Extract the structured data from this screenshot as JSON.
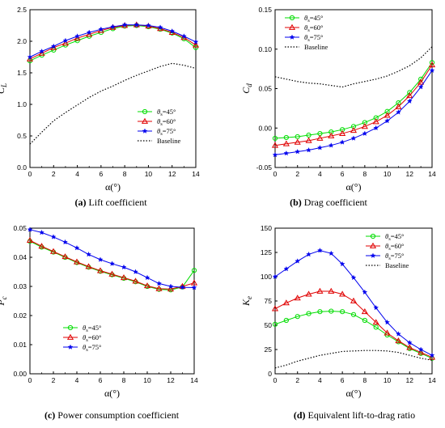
{
  "chart_data": [
    {
      "type": "line",
      "caption_tag": "(a)",
      "caption_text": " Lift coefficient",
      "ylabel_main": "C",
      "ylabel_sub": "L",
      "xlabel": "α(°)",
      "xlim": [
        0,
        14
      ],
      "ylim": [
        0.0,
        2.5
      ],
      "xticks": [
        "0",
        "2",
        "4",
        "6",
        "8",
        "10",
        "12",
        "14"
      ],
      "yticks": [
        "0.0",
        "0.5",
        "1.0",
        "1.5",
        "2.0",
        "2.5"
      ],
      "legend_position": "bottom-right",
      "x": [
        0,
        1,
        2,
        3,
        4,
        5,
        6,
        7,
        8,
        9,
        10,
        11,
        12,
        13,
        14
      ],
      "series": [
        {
          "name": "θs=45°",
          "name_pre": "θ",
          "name_sub": "s",
          "name_post": "=45°",
          "color": "#00dd00",
          "marker": "circle",
          "values": [
            1.69,
            1.78,
            1.86,
            1.94,
            2.01,
            2.08,
            2.14,
            2.2,
            2.24,
            2.25,
            2.23,
            2.19,
            2.13,
            2.04,
            1.9
          ]
        },
        {
          "name": "θs=60°",
          "name_pre": "θ",
          "name_sub": "s",
          "name_post": "=60°",
          "color": "#e00000",
          "marker": "triangle",
          "values": [
            1.72,
            1.81,
            1.9,
            1.97,
            2.05,
            2.11,
            2.17,
            2.22,
            2.25,
            2.26,
            2.24,
            2.2,
            2.14,
            2.06,
            1.94
          ]
        },
        {
          "name": "θs=75°",
          "name_pre": "θ",
          "name_sub": "s",
          "name_post": "=75°",
          "color": "#0000ee",
          "marker": "star",
          "values": [
            1.75,
            1.84,
            1.92,
            2.01,
            2.08,
            2.14,
            2.19,
            2.23,
            2.26,
            2.26,
            2.25,
            2.22,
            2.16,
            2.08,
            1.99
          ]
        },
        {
          "name": "Baseline",
          "color": "#000000",
          "dash": true,
          "values": [
            0.37,
            0.56,
            0.74,
            0.87,
            0.99,
            1.11,
            1.21,
            1.29,
            1.38,
            1.46,
            1.53,
            1.6,
            1.65,
            1.62,
            1.57
          ]
        }
      ]
    },
    {
      "type": "line",
      "caption_tag": "(b)",
      "caption_text": " Drag coefficient",
      "ylabel_main": "C",
      "ylabel_sub": "d",
      "xlabel": "α(°)",
      "xlim": [
        0,
        14
      ],
      "ylim": [
        -0.05,
        0.15
      ],
      "xticks": [
        "0",
        "2",
        "4",
        "6",
        "8",
        "10",
        "12",
        "14"
      ],
      "yticks": [
        "-0.05",
        "0.00",
        "0.05",
        "0.10",
        "0.15"
      ],
      "legend_position": "top-left",
      "x": [
        0,
        1,
        2,
        3,
        4,
        5,
        6,
        7,
        8,
        9,
        10,
        11,
        12,
        13,
        14
      ],
      "series": [
        {
          "name": "θs=45°",
          "name_pre": "θ",
          "name_sub": "s",
          "name_post": "=45°",
          "color": "#00dd00",
          "marker": "circle",
          "values": [
            -0.013,
            -0.012,
            -0.011,
            -0.009,
            -0.007,
            -0.005,
            -0.002,
            0.002,
            0.007,
            0.013,
            0.021,
            0.032,
            0.045,
            0.062,
            0.083
          ]
        },
        {
          "name": "θs=60°",
          "name_pre": "θ",
          "name_sub": "s",
          "name_post": "=60°",
          "color": "#e00000",
          "marker": "triangle",
          "values": [
            -0.022,
            -0.02,
            -0.018,
            -0.016,
            -0.013,
            -0.01,
            -0.007,
            -0.003,
            0.002,
            0.008,
            0.016,
            0.027,
            0.041,
            0.058,
            0.08
          ]
        },
        {
          "name": "θs=75°",
          "name_pre": "θ",
          "name_sub": "s",
          "name_post": "=75°",
          "color": "#0000ee",
          "marker": "star",
          "values": [
            -0.034,
            -0.032,
            -0.03,
            -0.028,
            -0.025,
            -0.022,
            -0.018,
            -0.013,
            -0.007,
            0.0,
            0.009,
            0.02,
            0.034,
            0.052,
            0.073
          ]
        },
        {
          "name": "Baseline",
          "color": "#000000",
          "dash": true,
          "values": [
            0.065,
            0.062,
            0.059,
            0.057,
            0.056,
            0.054,
            0.052,
            0.056,
            0.059,
            0.062,
            0.066,
            0.072,
            0.079,
            0.089,
            0.103
          ]
        }
      ]
    },
    {
      "type": "line",
      "caption_tag": "(c)",
      "caption_text": " Power consumption coefficient",
      "ylabel_main": "P",
      "ylabel_sub": "c",
      "xlabel": "α(°)",
      "xlim": [
        0,
        14
      ],
      "ylim": [
        0.0,
        0.05
      ],
      "xticks": [
        "0",
        "2",
        "4",
        "6",
        "8",
        "10",
        "12",
        "14"
      ],
      "yticks": [
        "0.00",
        "0.01",
        "0.02",
        "0.03",
        "0.04",
        "0.05"
      ],
      "legend_position": "bottom-left",
      "x": [
        0,
        1,
        2,
        3,
        4,
        5,
        6,
        7,
        8,
        9,
        10,
        11,
        12,
        13,
        14
      ],
      "series": [
        {
          "name": "θs=45°",
          "name_pre": "θ",
          "name_sub": "s",
          "name_post": "=45°",
          "color": "#00dd00",
          "marker": "circle",
          "values": [
            0.0455,
            0.0435,
            0.0418,
            0.04,
            0.0382,
            0.0366,
            0.0352,
            0.034,
            0.0328,
            0.0316,
            0.03,
            0.029,
            0.0288,
            0.0298,
            0.0355
          ]
        },
        {
          "name": "θs=60°",
          "name_pre": "θ",
          "name_sub": "s",
          "name_post": "=60°",
          "color": "#e00000",
          "marker": "triangle",
          "values": [
            0.0458,
            0.0438,
            0.042,
            0.0402,
            0.0384,
            0.0368,
            0.0354,
            0.0342,
            0.033,
            0.0318,
            0.0302,
            0.0292,
            0.0291,
            0.03,
            0.0312
          ]
        },
        {
          "name": "θs=75°",
          "name_pre": "θ",
          "name_sub": "s",
          "name_post": "=75°",
          "color": "#0000ee",
          "marker": "star",
          "values": [
            0.0495,
            0.0485,
            0.047,
            0.0452,
            0.0432,
            0.041,
            0.0392,
            0.0378,
            0.0366,
            0.035,
            0.033,
            0.031,
            0.03,
            0.0297,
            0.0296
          ]
        }
      ]
    },
    {
      "type": "line",
      "caption_tag": "(d)",
      "caption_text": " Equivalent lift-to-drag ratio",
      "ylabel_main": "K",
      "ylabel_sub": "e",
      "xlabel": "α(°)",
      "xlim": [
        0,
        14
      ],
      "ylim": [
        0,
        150
      ],
      "xticks": [
        "0",
        "2",
        "4",
        "6",
        "8",
        "10",
        "12",
        "14"
      ],
      "yticks": [
        "0",
        "25",
        "50",
        "75",
        "100",
        "125",
        "150"
      ],
      "legend_position": "top-right",
      "x": [
        0,
        1,
        2,
        3,
        4,
        5,
        6,
        7,
        8,
        9,
        10,
        11,
        12,
        13,
        14
      ],
      "series": [
        {
          "name": "θs=45°",
          "name_pre": "θ",
          "name_sub": "s",
          "name_post": "=45°",
          "color": "#00dd00",
          "marker": "circle",
          "values": [
            51,
            55,
            59,
            62,
            64,
            64.5,
            64,
            61,
            55,
            48,
            40,
            33,
            26,
            21,
            16
          ]
        },
        {
          "name": "θs=60°",
          "name_pre": "θ",
          "name_sub": "s",
          "name_post": "=60°",
          "color": "#e00000",
          "marker": "triangle",
          "values": [
            67,
            73,
            78,
            82,
            85,
            85,
            82,
            75,
            64,
            53,
            42,
            34,
            27,
            22,
            17
          ]
        },
        {
          "name": "θs=75°",
          "name_pre": "θ",
          "name_sub": "s",
          "name_post": "=75°",
          "color": "#0000ee",
          "marker": "star",
          "values": [
            100,
            108,
            116,
            123,
            127,
            124,
            113,
            99,
            84,
            68,
            53,
            41,
            32,
            25,
            19
          ]
        },
        {
          "name": "Baseline",
          "color": "#000000",
          "dash": true,
          "values": [
            6,
            9,
            13,
            16,
            19,
            21,
            23,
            23.5,
            24,
            24,
            23.5,
            22,
            19,
            16,
            14
          ]
        }
      ]
    }
  ]
}
